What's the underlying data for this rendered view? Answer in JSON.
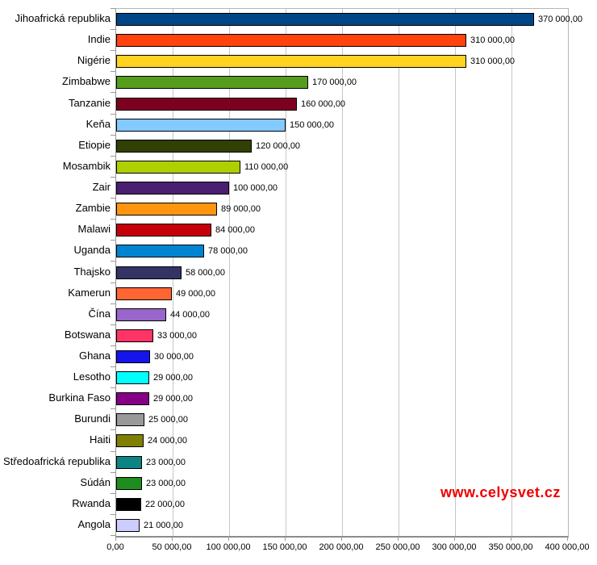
{
  "watermark": {
    "text": "www.celysvet.cz",
    "color": "#ee0000"
  },
  "chart_data": {
    "type": "bar",
    "orientation": "horizontal",
    "title": "",
    "categories": [
      "Jihoafrická republika",
      "Indie",
      "Nigérie",
      "Zimbabwe",
      "Tanzanie",
      "Keňa",
      "Etiopie",
      "Mosambik",
      "Zair",
      "Zambie",
      "Malawi",
      "Uganda",
      "Thajsko",
      "Kamerun",
      "Čína",
      "Botswana",
      "Ghana",
      "Lesotho",
      "Burkina Faso",
      "Burundi",
      "Haiti",
      "Středoafrická republika",
      "Súdán",
      "Rwanda",
      "Angola"
    ],
    "values": [
      370000,
      310000,
      310000,
      170000,
      160000,
      150000,
      120000,
      110000,
      100000,
      89000,
      84000,
      78000,
      58000,
      49000,
      44000,
      33000,
      30000,
      29000,
      29000,
      25000,
      24000,
      23000,
      23000,
      22000,
      21000
    ],
    "value_labels": [
      "370 000,00",
      "310 000,00",
      "310 000,00",
      "170 000,00",
      "160 000,00",
      "150 000,00",
      "120 000,00",
      "110 000,00",
      "100 000,00",
      "89 000,00",
      "84 000,00",
      "78 000,00",
      "58 000,00",
      "49 000,00",
      "44 000,00",
      "33 000,00",
      "30 000,00",
      "29 000,00",
      "29 000,00",
      "25 000,00",
      "24 000,00",
      "23 000,00",
      "23 000,00",
      "22 000,00",
      "21 000,00"
    ],
    "bar_colors": [
      "#004586",
      "#ff420e",
      "#ffd320",
      "#579d1c",
      "#7e0021",
      "#83caff",
      "#314004",
      "#aecf00",
      "#4b1f6f",
      "#ff950e",
      "#c5000b",
      "#0084d1",
      "#333366",
      "#ff6633",
      "#9966cc",
      "#ff3366",
      "#1414eb",
      "#00ffff",
      "#850085",
      "#999999",
      "#808000",
      "#0e8585",
      "#1f8c1f",
      "#000000",
      "#ccccff"
    ],
    "x_ticks": [
      "0,00",
      "50 000,00",
      "100 000,00",
      "150 000,00",
      "200 000,00",
      "250 000,00",
      "300 000,00",
      "350 000,00",
      "400 000,00"
    ],
    "xlim": [
      0,
      400000
    ],
    "grid": "vertical gridlines every 50000",
    "legend": "none",
    "grid_color": "#c6c6c6",
    "axis_color": "#9a9a9a"
  }
}
